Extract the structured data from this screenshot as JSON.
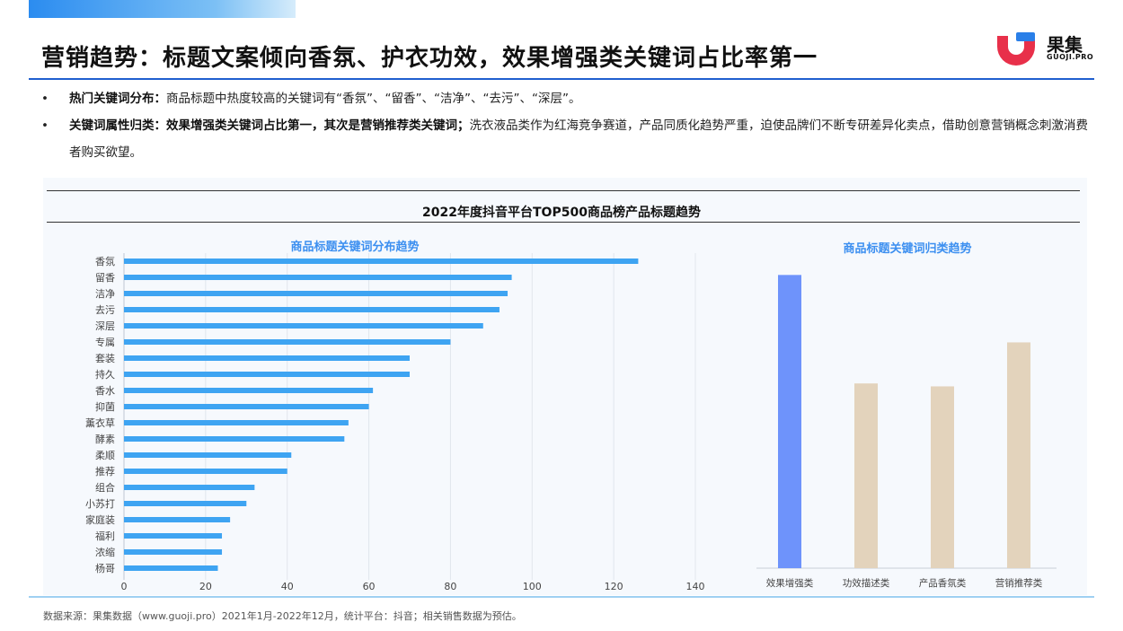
{
  "header": {
    "title": "营销趋势：标题文案倾向香氛、护衣功效，效果增强类关键词占比率第一",
    "logo_name": "果集",
    "logo_url": "GUOJI.PRO"
  },
  "bullets": [
    {
      "marker": "•",
      "bold": "热门关键词分布：",
      "text": "商品标题中热度较高的关键词有“香氛”、“留香”、“洁净”、“去污”、“深层”。"
    },
    {
      "marker": "•",
      "bold": "关键词属性归类：效果增强类关键词占比第一，其次是营销推荐类关键词；",
      "text": "洗衣液品类作为红海竞争赛道，产品同质化趋势严重，迫使品牌们不断专研差异化卖点，借助创意营销概念刺激消费者购买欲望。"
    }
  ],
  "chart_title": "2022年度抖音平台TOP500商品榜产品标题趋势",
  "chart_data": [
    {
      "type": "bar",
      "orientation": "horizontal",
      "title": "商品标题关键词分布趋势",
      "categories": [
        "香氛",
        "留香",
        "洁净",
        "去污",
        "深层",
        "专属",
        "套装",
        "持久",
        "香水",
        "抑菌",
        "薰衣草",
        "酵素",
        "柔顺",
        "推荐",
        "组合",
        "小苏打",
        "家庭装",
        "福利",
        "浓缩",
        "杨哥"
      ],
      "values": [
        126,
        95,
        94,
        92,
        88,
        80,
        70,
        70,
        61,
        60,
        55,
        54,
        41,
        40,
        32,
        30,
        26,
        24,
        24,
        23
      ],
      "xlim": [
        0,
        140
      ],
      "xticks": [
        "0",
        "20",
        "40",
        "60",
        "80",
        "100",
        "120",
        "140"
      ],
      "grid": true,
      "color": "#3ea4f2"
    },
    {
      "type": "bar",
      "title": "商品标题关键词归类趋势",
      "categories": [
        "效果增强类",
        "功效描述类",
        "产品香氛类",
        "营销推荐类"
      ],
      "values": [
        100,
        63,
        62,
        77
      ],
      "ylim": [
        0,
        105
      ],
      "colors": [
        "#6e93fb",
        "#e3d3bc",
        "#e3d3bc",
        "#e3d3bc"
      ]
    }
  ],
  "footer": {
    "source": "数据来源：果集数据（www.guoji.pro）2021年1月-2022年12月，统计平台：抖音；相关销售数据为预估。"
  }
}
